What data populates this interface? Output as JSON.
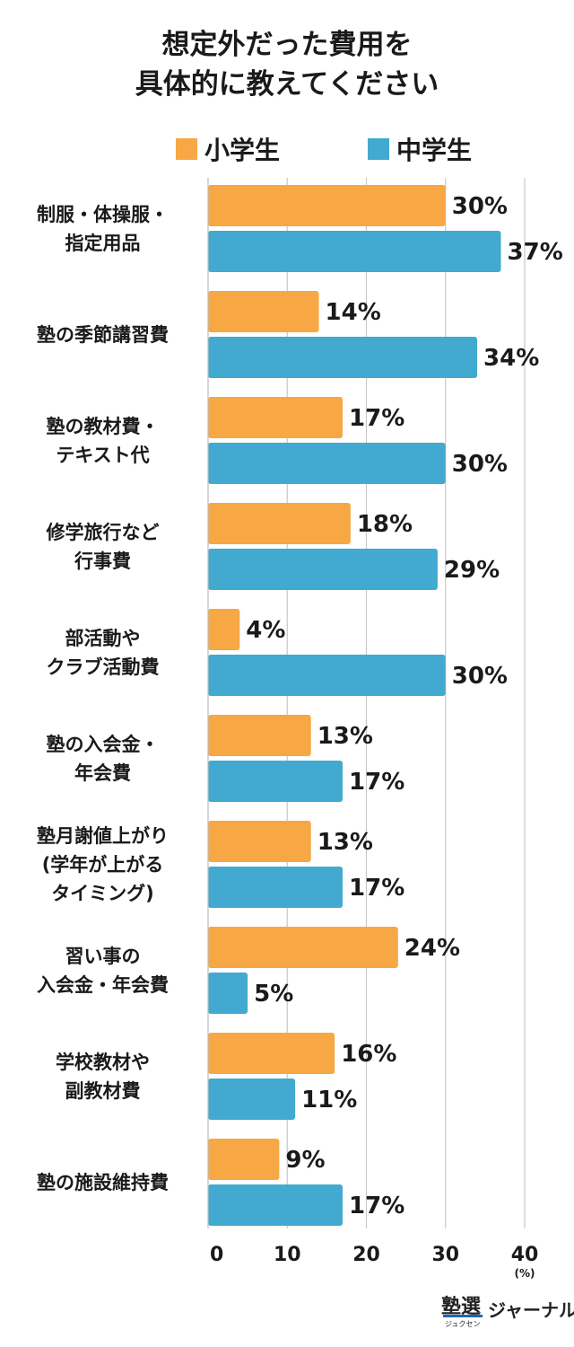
{
  "title_lines": [
    "想定外だった費用を",
    "具体的に教えてください"
  ],
  "colors": {
    "elementary": "#f7a744",
    "middle": "#42a9d0",
    "grid": "#c8c8c8"
  },
  "footer": {
    "logo_mark": "塾選",
    "logo_sub": "ジュクセン",
    "logo_text": "ジャーナル"
  },
  "chart_data": {
    "type": "bar",
    "orientation": "horizontal",
    "categories": [
      [
        "制服・体操服・",
        "指定用品"
      ],
      [
        "塾の季節講習費"
      ],
      [
        "塾の教材費・",
        "テキスト代"
      ],
      [
        "修学旅行など",
        "行事費"
      ],
      [
        "部活動や",
        "クラブ活動費"
      ],
      [
        "塾の入会金・",
        "年会費"
      ],
      [
        "塾月謝値上がり",
        "(学年が上がる",
        "タイミング)"
      ],
      [
        "習い事の",
        "入会金・年会費"
      ],
      [
        "学校教材や",
        "副教材費"
      ],
      [
        "塾の施設維持費"
      ]
    ],
    "series": [
      {
        "name": "小学生",
        "values": [
          30,
          14,
          17,
          18,
          4,
          13,
          13,
          24,
          16,
          9
        ]
      },
      {
        "name": "中学生",
        "values": [
          37,
          34,
          30,
          29,
          30,
          17,
          17,
          5,
          11,
          17
        ]
      }
    ],
    "value_suffix": "%",
    "xlim": [
      0,
      40
    ],
    "xticks": [
      0,
      10,
      20,
      30,
      40
    ],
    "xunit": "(%)",
    "grid": true,
    "legend_position": "top"
  }
}
